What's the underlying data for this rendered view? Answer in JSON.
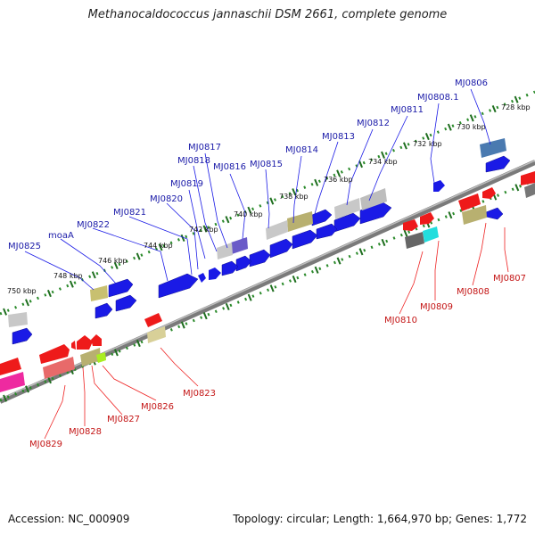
{
  "title": "Methanocaldococcus jannaschii DSM 2661, complete genome",
  "footer": {
    "accession": "Accession: NC_000909",
    "summary": "Topology: circular; Length: 1,664,970 bp; Genes: 1,772"
  },
  "colors": {
    "forward_gene": "#1a1ae6",
    "reverse_gene": "#ee1a1a",
    "label_forward": "#1a1aa8",
    "label_reverse": "#c41616",
    "backbone": "#7a7a7a",
    "tick_minor": "#2a8a2a",
    "tick_major": "#1f6e1f",
    "rna_gray": "#b8b8b8",
    "olive": "#c8c070",
    "magenta": "#ee2aa0",
    "cyan": "#22dddd",
    "lime": "#aaee22",
    "steel": "#4a7ab0",
    "purple": "#6a5ac8"
  },
  "kbp_labels": [
    "728 kbp",
    "730 kbp",
    "732 kbp",
    "734 kbp",
    "736 kbp",
    "738 kbp",
    "740 kbp",
    "742 kbp",
    "744 kbp",
    "746 kbp",
    "748 kbp",
    "750 kbp"
  ],
  "gene_labels_top": [
    "MJ0806",
    "MJ0808.1",
    "MJ0811",
    "MJ0812",
    "MJ0813",
    "MJ0814",
    "MJ0815",
    "MJ0816",
    "MJ0817",
    "MJ0818",
    "MJ0819",
    "MJ0820",
    "MJ0821",
    "MJ0822",
    "moaA",
    "MJ0825"
  ],
  "gene_labels_bottom": [
    "MJ0807",
    "MJ0808",
    "MJ0809",
    "MJ0810",
    "MJ0823",
    "MJ0826",
    "MJ0827",
    "MJ0828",
    "MJ0829"
  ]
}
